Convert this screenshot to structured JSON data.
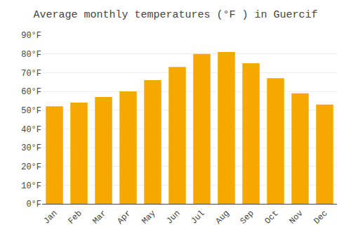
{
  "chart_data": {
    "type": "bar",
    "title": "Average monthly temperatures (°F ) in Guercif",
    "categories": [
      "Jan",
      "Feb",
      "Mar",
      "Apr",
      "May",
      "Jun",
      "Jul",
      "Aug",
      "Sep",
      "Oct",
      "Nov",
      "Dec"
    ],
    "values": [
      52,
      54,
      57,
      60,
      66,
      73,
      80,
      81,
      75,
      67,
      59,
      53
    ],
    "color": "#F5A800",
    "ylim": [
      0,
      90
    ],
    "yticks": [
      {
        "value": 0,
        "label": "0°F"
      },
      {
        "value": 10,
        "label": "10°F"
      },
      {
        "value": 20,
        "label": "20°F"
      },
      {
        "value": 30,
        "label": "30°F"
      },
      {
        "value": 40,
        "label": "40°F"
      },
      {
        "value": 50,
        "label": "50°F"
      },
      {
        "value": 60,
        "label": "60°F"
      },
      {
        "value": 70,
        "label": "70°F"
      },
      {
        "value": 80,
        "label": "80°F"
      },
      {
        "value": 90,
        "label": "90°F"
      }
    ],
    "grid": true
  }
}
